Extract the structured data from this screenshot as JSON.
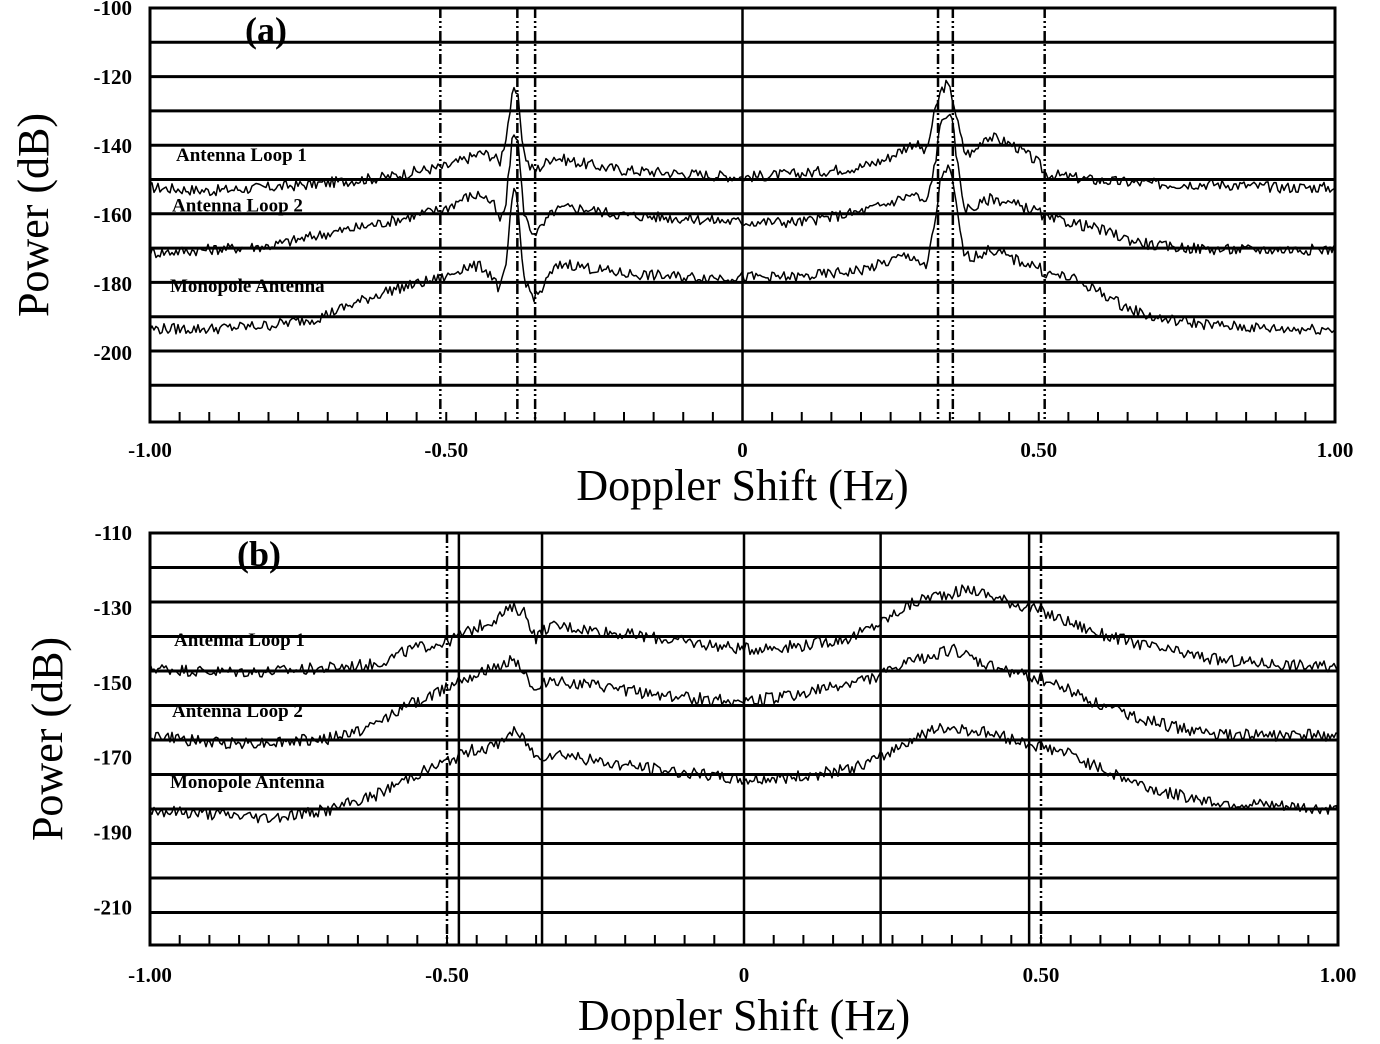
{
  "chart_data": [
    {
      "type": "line",
      "panel_label": "(a)",
      "xlabel": "Doppler Shift (Hz)",
      "ylabel": "Power (dB)",
      "xlim": [
        -1.0,
        1.0
      ],
      "ylim": [
        -220,
        -100
      ],
      "xticks": [
        -1.0,
        -0.5,
        0,
        0.5,
        1.0
      ],
      "xtick_labels": [
        "-1.00",
        "-0.50",
        "0",
        "0.50",
        "1.00"
      ],
      "yticks": [
        -100,
        -120,
        -140,
        -160,
        -180,
        -200
      ],
      "ytick_labels": [
        "-100",
        "-120",
        "-140",
        "-160",
        "-180",
        "-200"
      ],
      "grid": "horizontal",
      "solid_vertical_lines": [
        0
      ],
      "dashed_vertical_lines": [
        -0.51,
        -0.38,
        -0.35,
        0.33,
        0.355,
        0.51
      ],
      "series": [
        {
          "name": "Antenna Loop 1",
          "x": [
            -1.0,
            -0.9,
            -0.8,
            -0.72,
            -0.66,
            -0.6,
            -0.54,
            -0.5,
            -0.47,
            -0.44,
            -0.42,
            -0.41,
            -0.4,
            -0.39,
            -0.385,
            -0.38,
            -0.375,
            -0.37,
            -0.36,
            -0.35,
            -0.34,
            -0.32,
            -0.3,
            -0.27,
            -0.24,
            -0.2,
            -0.1,
            0,
            0.1,
            0.2,
            0.24,
            0.27,
            0.29,
            0.31,
            0.325,
            0.335,
            0.345,
            0.355,
            0.365,
            0.375,
            0.39,
            0.41,
            0.43,
            0.46,
            0.5,
            0.51,
            0.55,
            0.6,
            0.7,
            0.8,
            0.9,
            1.0
          ],
          "y": [
            -152,
            -153,
            -152,
            -151,
            -150,
            -149,
            -147,
            -146,
            -144,
            -142,
            -143,
            -145,
            -138,
            -127,
            -124,
            -125,
            -132,
            -141,
            -146,
            -147,
            -146,
            -143,
            -144,
            -145,
            -146,
            -147,
            -148,
            -149,
            -148,
            -146,
            -144,
            -141,
            -139,
            -142,
            -130,
            -124,
            -122,
            -126,
            -135,
            -142,
            -142,
            -137,
            -138,
            -140,
            -145,
            -148,
            -149,
            -150,
            -151,
            -151,
            -152,
            -152
          ]
        },
        {
          "name": "Antenna Loop 2",
          "x": [
            -1.0,
            -0.9,
            -0.8,
            -0.72,
            -0.66,
            -0.6,
            -0.55,
            -0.5,
            -0.47,
            -0.44,
            -0.42,
            -0.41,
            -0.4,
            -0.39,
            -0.385,
            -0.38,
            -0.375,
            -0.37,
            -0.36,
            -0.35,
            -0.34,
            -0.32,
            -0.3,
            -0.27,
            -0.24,
            -0.2,
            -0.1,
            0,
            0.1,
            0.2,
            0.24,
            0.27,
            0.29,
            0.31,
            0.325,
            0.335,
            0.345,
            0.355,
            0.365,
            0.375,
            0.39,
            0.42,
            0.46,
            0.5,
            0.51,
            0.55,
            0.6,
            0.65,
            0.7,
            0.8,
            0.9,
            1.0
          ],
          "y": [
            -171,
            -170,
            -169,
            -166,
            -164,
            -162,
            -160,
            -158,
            -155,
            -154,
            -157,
            -162,
            -158,
            -140,
            -136,
            -137,
            -147,
            -158,
            -164,
            -165,
            -164,
            -159,
            -158,
            -158,
            -159,
            -160,
            -161,
            -162,
            -162,
            -159,
            -157,
            -155,
            -154,
            -157,
            -145,
            -133,
            -130,
            -134,
            -148,
            -158,
            -158,
            -155,
            -157,
            -159,
            -161,
            -162,
            -164,
            -167,
            -169,
            -170,
            -170,
            -170
          ]
        },
        {
          "name": "Monopole Antenna",
          "x": [
            -1.0,
            -0.9,
            -0.8,
            -0.72,
            -0.66,
            -0.6,
            -0.55,
            -0.5,
            -0.47,
            -0.44,
            -0.42,
            -0.41,
            -0.4,
            -0.39,
            -0.385,
            -0.38,
            -0.375,
            -0.37,
            -0.36,
            -0.35,
            -0.34,
            -0.32,
            -0.3,
            -0.27,
            -0.24,
            -0.2,
            -0.1,
            0,
            0.1,
            0.2,
            0.24,
            0.27,
            0.29,
            0.31,
            0.325,
            0.335,
            0.345,
            0.355,
            0.365,
            0.375,
            0.39,
            0.42,
            0.46,
            0.5,
            0.51,
            0.55,
            0.6,
            0.65,
            0.7,
            0.8,
            0.9,
            1.0
          ],
          "y": [
            -193,
            -193,
            -192,
            -190,
            -186,
            -182,
            -180,
            -178,
            -175,
            -175,
            -178,
            -182,
            -176,
            -158,
            -153,
            -155,
            -167,
            -177,
            -182,
            -184,
            -182,
            -176,
            -174,
            -175,
            -176,
            -177,
            -178,
            -178,
            -178,
            -176,
            -174,
            -172,
            -172,
            -176,
            -162,
            -149,
            -146,
            -150,
            -163,
            -172,
            -172,
            -170,
            -173,
            -175,
            -177,
            -178,
            -182,
            -187,
            -190,
            -192,
            -193,
            -193
          ]
        }
      ]
    },
    {
      "type": "line",
      "panel_label": "(b)",
      "xlabel": "Doppler Shift (Hz)",
      "ylabel": "Power (dB)",
      "xlim": [
        -1.0,
        1.0
      ],
      "ylim": [
        -220,
        -110
      ],
      "xticks": [
        -1.0,
        -0.5,
        0,
        0.5,
        1.0
      ],
      "xtick_labels": [
        "-1.00",
        "-0.50",
        "0",
        "0.50",
        "1.00"
      ],
      "yticks": [
        -110,
        -130,
        -150,
        -170,
        -190,
        -210
      ],
      "ytick_labels": [
        "-110",
        "-130",
        "-150",
        "-170",
        "-190",
        "-210"
      ],
      "grid": "horizontal",
      "solid_vertical_lines": [
        -0.48,
        -0.34,
        0,
        0.23,
        0.48
      ],
      "dashed_vertical_lines": [
        -0.5,
        0.5
      ],
      "series": [
        {
          "name": "Antenna Loop 1",
          "x": [
            -1.0,
            -0.9,
            -0.8,
            -0.7,
            -0.62,
            -0.56,
            -0.5,
            -0.46,
            -0.42,
            -0.39,
            -0.37,
            -0.35,
            -0.33,
            -0.3,
            -0.25,
            -0.2,
            -0.1,
            0,
            0.1,
            0.18,
            0.23,
            0.27,
            0.31,
            0.35,
            0.38,
            0.42,
            0.46,
            0.5,
            0.55,
            0.6,
            0.7,
            0.8,
            0.9,
            1.0
          ],
          "y": [
            -146,
            -147,
            -147,
            -146,
            -145,
            -141,
            -139,
            -136,
            -133,
            -130,
            -131,
            -138,
            -135,
            -135,
            -136,
            -137,
            -139,
            -141,
            -140,
            -138,
            -134,
            -130,
            -127,
            -126,
            -125,
            -127,
            -129,
            -131,
            -134,
            -137,
            -141,
            -144,
            -145,
            -146
          ]
        },
        {
          "name": "Antenna Loop 2",
          "x": [
            -1.0,
            -0.9,
            -0.8,
            -0.7,
            -0.63,
            -0.58,
            -0.52,
            -0.48,
            -0.44,
            -0.41,
            -0.39,
            -0.37,
            -0.35,
            -0.33,
            -0.3,
            -0.25,
            -0.2,
            -0.1,
            0,
            0.1,
            0.18,
            0.23,
            0.27,
            0.31,
            0.35,
            0.4,
            0.45,
            0.5,
            0.55,
            0.6,
            0.7,
            0.8,
            0.9,
            1.0
          ],
          "y": [
            -164,
            -166,
            -166,
            -165,
            -162,
            -157,
            -153,
            -149,
            -147,
            -146,
            -143,
            -147,
            -153,
            -149,
            -150,
            -151,
            -152,
            -154,
            -155,
            -153,
            -150,
            -148,
            -145,
            -143,
            -141,
            -145,
            -147,
            -149,
            -152,
            -156,
            -161,
            -164,
            -164,
            -164
          ]
        },
        {
          "name": "Monopole Antenna",
          "x": [
            -1.0,
            -0.9,
            -0.8,
            -0.7,
            -0.62,
            -0.56,
            -0.5,
            -0.46,
            -0.42,
            -0.39,
            -0.37,
            -0.35,
            -0.33,
            -0.3,
            -0.25,
            -0.2,
            -0.1,
            0,
            0.1,
            0.18,
            0.23,
            0.27,
            0.31,
            0.35,
            0.4,
            0.45,
            0.5,
            0.55,
            0.6,
            0.7,
            0.8,
            0.9,
            1.0
          ],
          "y": [
            -184,
            -185,
            -186,
            -184,
            -180,
            -175,
            -171,
            -168,
            -167,
            -163,
            -165,
            -170,
            -169,
            -169,
            -171,
            -172,
            -174,
            -176,
            -175,
            -173,
            -170,
            -166,
            -163,
            -162,
            -163,
            -165,
            -167,
            -169,
            -173,
            -179,
            -182,
            -183,
            -184
          ]
        }
      ]
    }
  ]
}
